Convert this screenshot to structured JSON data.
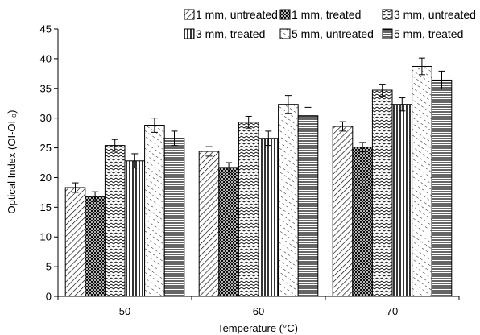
{
  "chart_data": {
    "type": "bar",
    "xlabel": "Temperature (°C)",
    "ylabel": "Optical Index (OI-OI ₀)",
    "ylim": [
      0,
      45
    ],
    "yticks": [
      0,
      5,
      10,
      15,
      20,
      25,
      30,
      35,
      40,
      45
    ],
    "categories": [
      "50",
      "60",
      "70"
    ],
    "grid": false,
    "legend_position": "top",
    "series": [
      {
        "name": "1 mm, untreated",
        "pattern": "diagonal-hatch",
        "values": [
          18.3,
          24.4,
          28.6
        ],
        "errors": [
          0.8,
          0.8,
          0.8
        ]
      },
      {
        "name": "1 mm, treated",
        "pattern": "crosshatch",
        "values": [
          16.8,
          21.7,
          25.1
        ],
        "errors": [
          0.8,
          0.8,
          0.8
        ]
      },
      {
        "name": "3 mm, untreated",
        "pattern": "zigzag",
        "values": [
          25.4,
          29.3,
          34.7
        ],
        "errors": [
          1.0,
          1.0,
          1.0
        ]
      },
      {
        "name": "3 mm, treated",
        "pattern": "vertical-lines",
        "values": [
          22.8,
          26.6,
          32.3
        ],
        "errors": [
          1.2,
          1.2,
          1.1
        ]
      },
      {
        "name": "5 mm, untreated",
        "pattern": "dashed-diagonal",
        "values": [
          28.8,
          32.3,
          38.7
        ],
        "errors": [
          1.2,
          1.5,
          1.4
        ]
      },
      {
        "name": "5 mm, treated",
        "pattern": "horizontal-lines",
        "values": [
          26.6,
          30.4,
          36.4
        ],
        "errors": [
          1.2,
          1.4,
          1.5
        ]
      }
    ]
  }
}
